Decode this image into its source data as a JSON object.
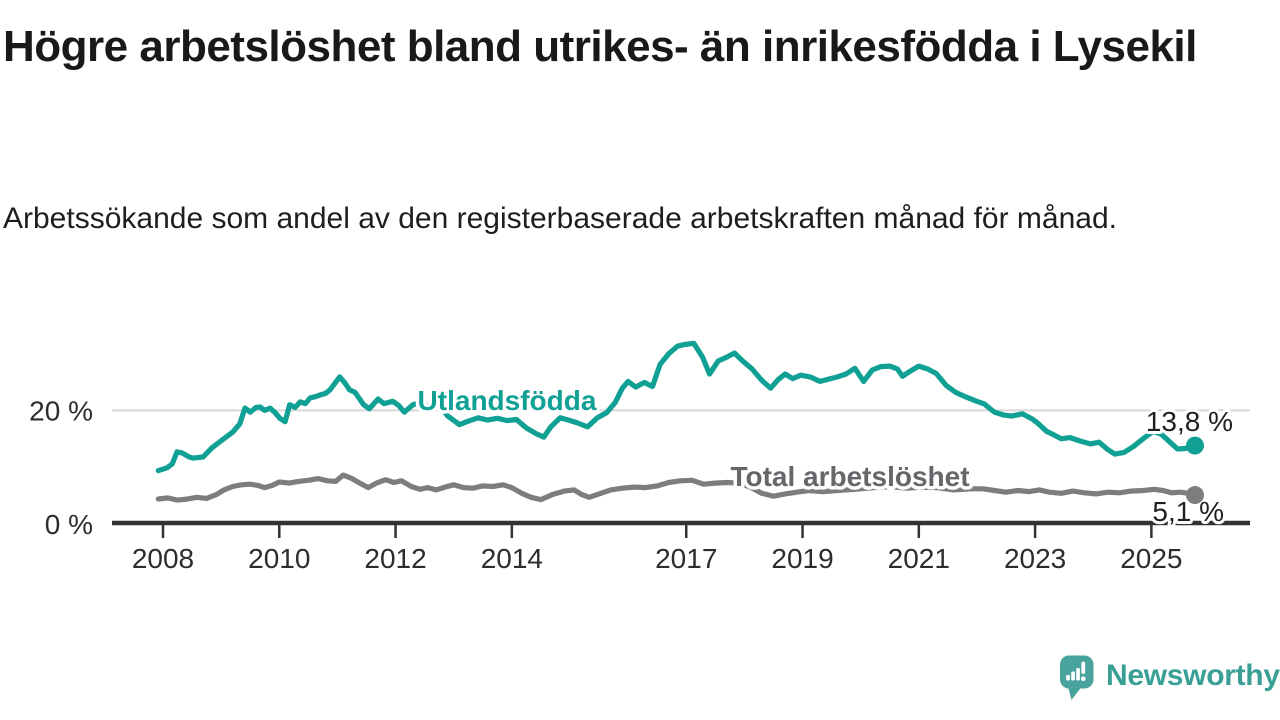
{
  "title": "Högre arbetslöshet bland utrikes- än inrikesfödda i Lysekil",
  "subtitle": "Arbetssökande som andel av den registerbaserade arbetskraften månad för månad.",
  "colors": {
    "foreign_line": "#11A094",
    "total_line": "#7D7D80",
    "total_label": "#66666B",
    "axis": "#333333",
    "gridline": "#D8D8D8",
    "annotation_text": "#1F1F1F",
    "logo_bubble": "#47A39B",
    "logo_text": "#3AA096"
  },
  "logo": {
    "text": "Newsworthy",
    "icon": "speech-bubble-bar-chart-icon"
  },
  "chart_data": {
    "type": "line",
    "title": "Högre arbetslöshet bland utrikes- än inrikesfödda i Lysekil",
    "subtitle": "Arbetssökande som andel av den registerbaserade arbetskraften månad för månad.",
    "unit": "%",
    "grid": "horizontal-20-only",
    "legend_position": "inline-labels",
    "x_axis": {
      "ticks": [
        2008,
        2010,
        2012,
        2014,
        2017,
        2019,
        2021,
        2023,
        2025
      ],
      "range": [
        2007.9,
        2026.0
      ]
    },
    "y_axis": {
      "ticks": [
        {
          "value": 0,
          "label": "0 %"
        },
        {
          "value": 20,
          "label": "20 %"
        }
      ],
      "range": [
        0,
        33
      ]
    },
    "series": [
      {
        "name": "Utlandsfödda",
        "color": "#11A094",
        "end_label": "13,8 %",
        "end_value": 13.8,
        "points": [
          [
            2007.92,
            9.4
          ],
          [
            2008.07,
            9.9
          ],
          [
            2008.16,
            10.6
          ],
          [
            2008.24,
            12.7
          ],
          [
            2008.33,
            12.5
          ],
          [
            2008.45,
            11.8
          ],
          [
            2008.52,
            11.6
          ],
          [
            2008.69,
            11.8
          ],
          [
            2008.84,
            13.4
          ],
          [
            2009.03,
            14.9
          ],
          [
            2009.2,
            16.2
          ],
          [
            2009.32,
            17.6
          ],
          [
            2009.41,
            20.4
          ],
          [
            2009.5,
            19.7
          ],
          [
            2009.6,
            20.5
          ],
          [
            2009.67,
            20.6
          ],
          [
            2009.75,
            20.0
          ],
          [
            2009.84,
            20.4
          ],
          [
            2009.93,
            19.6
          ],
          [
            2010.01,
            18.6
          ],
          [
            2010.1,
            18.0
          ],
          [
            2010.18,
            21.0
          ],
          [
            2010.27,
            20.5
          ],
          [
            2010.36,
            21.5
          ],
          [
            2010.45,
            21.2
          ],
          [
            2010.53,
            22.2
          ],
          [
            2010.62,
            22.4
          ],
          [
            2010.7,
            22.7
          ],
          [
            2010.8,
            23.0
          ],
          [
            2010.87,
            23.6
          ],
          [
            2010.96,
            24.8
          ],
          [
            2011.04,
            25.9
          ],
          [
            2011.13,
            24.8
          ],
          [
            2011.21,
            23.6
          ],
          [
            2011.3,
            23.2
          ],
          [
            2011.45,
            21.0
          ],
          [
            2011.55,
            20.3
          ],
          [
            2011.7,
            22.0
          ],
          [
            2011.8,
            21.2
          ],
          [
            2011.95,
            21.6
          ],
          [
            2012.05,
            20.9
          ],
          [
            2012.15,
            19.7
          ],
          [
            2012.3,
            21.0
          ],
          [
            2012.45,
            21.5
          ],
          [
            2012.6,
            20.3
          ],
          [
            2012.75,
            20.9
          ],
          [
            2012.9,
            19.0
          ],
          [
            2013.1,
            17.5
          ],
          [
            2013.25,
            18.1
          ],
          [
            2013.42,
            18.7
          ],
          [
            2013.58,
            18.3
          ],
          [
            2013.75,
            18.6
          ],
          [
            2013.92,
            18.2
          ],
          [
            2014.08,
            18.4
          ],
          [
            2014.25,
            16.9
          ],
          [
            2014.42,
            15.9
          ],
          [
            2014.55,
            15.3
          ],
          [
            2014.67,
            17.1
          ],
          [
            2014.83,
            18.7
          ],
          [
            2014.97,
            18.3
          ],
          [
            2015.13,
            17.8
          ],
          [
            2015.3,
            17.1
          ],
          [
            2015.47,
            18.7
          ],
          [
            2015.63,
            19.6
          ],
          [
            2015.78,
            21.4
          ],
          [
            2015.9,
            23.9
          ],
          [
            2016.0,
            25.1
          ],
          [
            2016.13,
            24.1
          ],
          [
            2016.28,
            24.9
          ],
          [
            2016.42,
            24.2
          ],
          [
            2016.55,
            28.1
          ],
          [
            2016.7,
            30.0
          ],
          [
            2016.85,
            31.3
          ],
          [
            2016.97,
            31.6
          ],
          [
            2017.13,
            31.8
          ],
          [
            2017.28,
            29.4
          ],
          [
            2017.4,
            26.4
          ],
          [
            2017.55,
            28.7
          ],
          [
            2017.7,
            29.4
          ],
          [
            2017.83,
            30.1
          ],
          [
            2017.97,
            28.7
          ],
          [
            2018.13,
            27.3
          ],
          [
            2018.3,
            25.3
          ],
          [
            2018.45,
            23.9
          ],
          [
            2018.58,
            25.4
          ],
          [
            2018.7,
            26.4
          ],
          [
            2018.83,
            25.6
          ],
          [
            2018.97,
            26.2
          ],
          [
            2019.13,
            25.9
          ],
          [
            2019.3,
            25.1
          ],
          [
            2019.45,
            25.5
          ],
          [
            2019.6,
            25.9
          ],
          [
            2019.75,
            26.4
          ],
          [
            2019.9,
            27.4
          ],
          [
            2020.05,
            25.1
          ],
          [
            2020.2,
            27.1
          ],
          [
            2020.35,
            27.7
          ],
          [
            2020.5,
            27.8
          ],
          [
            2020.63,
            27.3
          ],
          [
            2020.72,
            26.0
          ],
          [
            2020.85,
            26.9
          ],
          [
            2021.0,
            27.8
          ],
          [
            2021.15,
            27.3
          ],
          [
            2021.3,
            26.5
          ],
          [
            2021.47,
            24.4
          ],
          [
            2021.63,
            23.2
          ],
          [
            2021.8,
            22.4
          ],
          [
            2021.97,
            21.7
          ],
          [
            2022.13,
            21.1
          ],
          [
            2022.3,
            19.7
          ],
          [
            2022.45,
            19.2
          ],
          [
            2022.6,
            19.0
          ],
          [
            2022.78,
            19.4
          ],
          [
            2022.95,
            18.5
          ],
          [
            2023.05,
            17.7
          ],
          [
            2023.2,
            16.3
          ],
          [
            2023.3,
            15.8
          ],
          [
            2023.45,
            15.0
          ],
          [
            2023.6,
            15.2
          ],
          [
            2023.78,
            14.6
          ],
          [
            2023.95,
            14.1
          ],
          [
            2024.1,
            14.4
          ],
          [
            2024.25,
            13.1
          ],
          [
            2024.37,
            12.3
          ],
          [
            2024.53,
            12.6
          ],
          [
            2024.7,
            13.7
          ],
          [
            2024.87,
            15.1
          ],
          [
            2025.03,
            16.3
          ],
          [
            2025.17,
            15.8
          ],
          [
            2025.3,
            14.6
          ],
          [
            2025.45,
            13.2
          ],
          [
            2025.6,
            13.3
          ],
          [
            2025.75,
            13.8
          ]
        ]
      },
      {
        "name": "Total arbetslöshet",
        "color": "#7D7D80",
        "end_label": "5,1 %",
        "end_value": 5.1,
        "points": [
          [
            2007.92,
            4.4
          ],
          [
            2008.08,
            4.6
          ],
          [
            2008.25,
            4.2
          ],
          [
            2008.42,
            4.4
          ],
          [
            2008.58,
            4.7
          ],
          [
            2008.75,
            4.5
          ],
          [
            2008.92,
            5.2
          ],
          [
            2009.05,
            6.0
          ],
          [
            2009.2,
            6.6
          ],
          [
            2009.35,
            6.9
          ],
          [
            2009.5,
            7.0
          ],
          [
            2009.63,
            6.8
          ],
          [
            2009.75,
            6.4
          ],
          [
            2009.88,
            6.8
          ],
          [
            2010.0,
            7.4
          ],
          [
            2010.17,
            7.2
          ],
          [
            2010.33,
            7.5
          ],
          [
            2010.5,
            7.7
          ],
          [
            2010.67,
            8.0
          ],
          [
            2010.83,
            7.6
          ],
          [
            2010.97,
            7.5
          ],
          [
            2011.1,
            8.6
          ],
          [
            2011.25,
            8.0
          ],
          [
            2011.42,
            7.0
          ],
          [
            2011.53,
            6.4
          ],
          [
            2011.67,
            7.2
          ],
          [
            2011.83,
            7.8
          ],
          [
            2011.97,
            7.3
          ],
          [
            2012.1,
            7.6
          ],
          [
            2012.27,
            6.6
          ],
          [
            2012.42,
            6.1
          ],
          [
            2012.55,
            6.4
          ],
          [
            2012.7,
            6.0
          ],
          [
            2012.85,
            6.5
          ],
          [
            2013.0,
            6.9
          ],
          [
            2013.17,
            6.4
          ],
          [
            2013.33,
            6.3
          ],
          [
            2013.5,
            6.7
          ],
          [
            2013.67,
            6.6
          ],
          [
            2013.85,
            6.9
          ],
          [
            2014.0,
            6.4
          ],
          [
            2014.17,
            5.4
          ],
          [
            2014.33,
            4.7
          ],
          [
            2014.5,
            4.3
          ],
          [
            2014.7,
            5.2
          ],
          [
            2014.9,
            5.8
          ],
          [
            2015.07,
            6.0
          ],
          [
            2015.2,
            5.2
          ],
          [
            2015.33,
            4.7
          ],
          [
            2015.5,
            5.3
          ],
          [
            2015.7,
            6.0
          ],
          [
            2015.9,
            6.3
          ],
          [
            2016.1,
            6.5
          ],
          [
            2016.3,
            6.4
          ],
          [
            2016.5,
            6.7
          ],
          [
            2016.7,
            7.3
          ],
          [
            2016.9,
            7.6
          ],
          [
            2017.1,
            7.7
          ],
          [
            2017.3,
            7.0
          ],
          [
            2017.5,
            7.2
          ],
          [
            2017.7,
            7.3
          ],
          [
            2017.9,
            7.2
          ],
          [
            2018.1,
            6.5
          ],
          [
            2018.3,
            5.4
          ],
          [
            2018.5,
            4.9
          ],
          [
            2018.7,
            5.3
          ],
          [
            2018.9,
            5.6
          ],
          [
            2019.1,
            5.9
          ],
          [
            2019.35,
            5.7
          ],
          [
            2019.6,
            5.9
          ],
          [
            2019.9,
            6.1
          ],
          [
            2020.2,
            6.4
          ],
          [
            2020.5,
            6.6
          ],
          [
            2020.8,
            6.3
          ],
          [
            2021.05,
            6.5
          ],
          [
            2021.3,
            6.4
          ],
          [
            2021.6,
            6.0
          ],
          [
            2021.9,
            6.2
          ],
          [
            2022.1,
            6.2
          ],
          [
            2022.3,
            5.9
          ],
          [
            2022.5,
            5.6
          ],
          [
            2022.7,
            5.9
          ],
          [
            2022.9,
            5.7
          ],
          [
            2023.07,
            6.0
          ],
          [
            2023.25,
            5.6
          ],
          [
            2023.45,
            5.4
          ],
          [
            2023.65,
            5.8
          ],
          [
            2023.85,
            5.5
          ],
          [
            2024.05,
            5.3
          ],
          [
            2024.25,
            5.6
          ],
          [
            2024.45,
            5.5
          ],
          [
            2024.65,
            5.8
          ],
          [
            2024.85,
            5.9
          ],
          [
            2025.05,
            6.1
          ],
          [
            2025.2,
            5.9
          ],
          [
            2025.35,
            5.5
          ],
          [
            2025.5,
            5.6
          ],
          [
            2025.63,
            5.4
          ],
          [
            2025.75,
            5.1
          ]
        ]
      }
    ]
  }
}
